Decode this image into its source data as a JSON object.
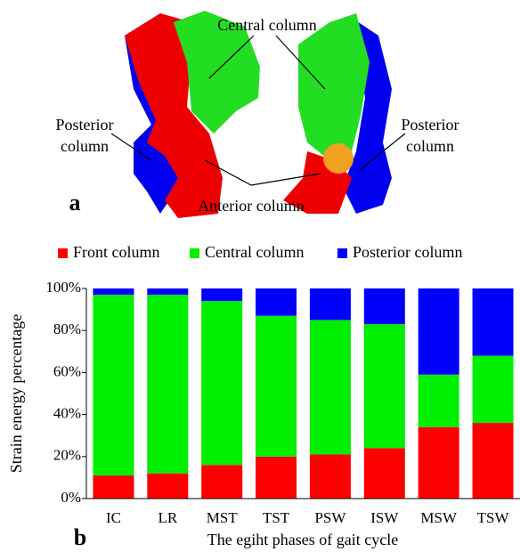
{
  "panel_a": {
    "label": "a",
    "central": "Central column",
    "posterior_left": [
      "Posterior",
      "column"
    ],
    "posterior_right": [
      "Posterior",
      "column"
    ],
    "anterior": "Anterior column"
  },
  "chart_data": {
    "type": "stacked_bar",
    "panel_label": "b",
    "ylabel": "Strain energy percentage",
    "xlabel": "The egiht phases of gait cycle",
    "categories": [
      "IC",
      "LR",
      "MST",
      "TST",
      "PSW",
      "ISW",
      "MSW",
      "TSW"
    ],
    "series": [
      {
        "name": "Front column",
        "color": "#ff0000",
        "values": [
          11,
          12,
          16,
          20,
          21,
          24,
          34,
          36
        ]
      },
      {
        "name": "Central column",
        "color": "#00ee00",
        "values": [
          86,
          85,
          78,
          67,
          64,
          59,
          25,
          32
        ]
      },
      {
        "name": "Posterior column",
        "color": "#0000ff",
        "values": [
          3,
          3,
          6,
          13,
          15,
          17,
          41,
          32
        ]
      }
    ],
    "ylim": [
      0,
      100
    ],
    "yticks": [
      {
        "value": 0,
        "label": "0%"
      },
      {
        "value": 20,
        "label": "20%"
      },
      {
        "value": 40,
        "label": "40%"
      },
      {
        "value": 60,
        "label": "60%"
      },
      {
        "value": 80,
        "label": "80%"
      },
      {
        "value": 100,
        "label": "100%"
      }
    ],
    "legend": "top"
  }
}
